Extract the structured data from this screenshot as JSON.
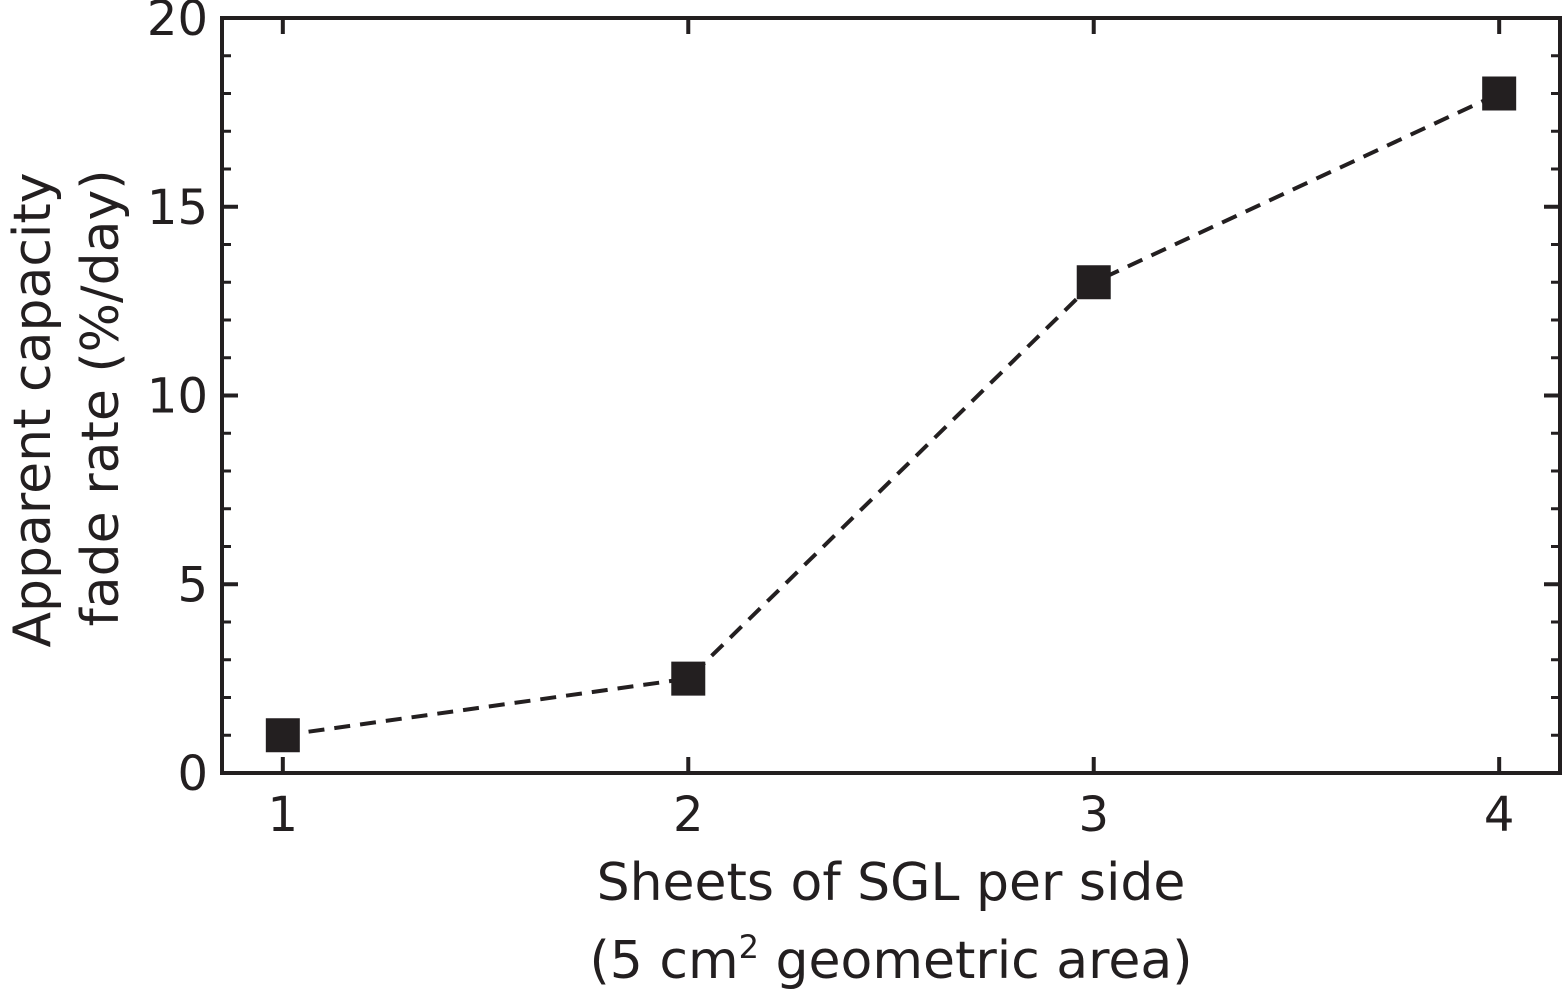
{
  "chart_data": {
    "type": "line",
    "x": [
      1,
      2,
      3,
      4
    ],
    "series": [
      {
        "values": [
          1.0,
          2.5,
          13.0,
          18.0
        ],
        "color": "#231f20",
        "marker": "square",
        "line_style": "dashed"
      }
    ],
    "xlabel": {
      "line1": "Sheets of SGL per side",
      "line2_pre": "(5 cm",
      "line2_sup": "2",
      "line2_post": " geometric area)"
    },
    "ylabel": {
      "line1": "Apparent capacity",
      "line2": "fade rate (%/day)"
    },
    "xticks": [
      "1",
      "2",
      "3",
      "4"
    ],
    "yticks": [
      "0",
      "5",
      "10",
      "15",
      "20"
    ],
    "xlim": [
      0.85,
      4.15
    ],
    "ylim": [
      0,
      20
    ],
    "grid": false,
    "legend": false
  }
}
